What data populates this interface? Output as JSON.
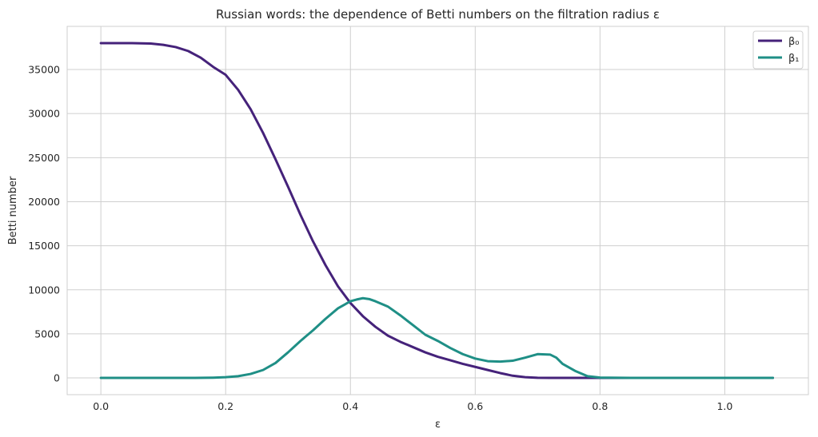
{
  "chart_data": {
    "type": "line",
    "title": "Russian words: the dependence of Betti numbers on the filtration radius ε",
    "xlabel": "ε",
    "ylabel": "Betti number",
    "xlim": [
      -0.054,
      1.134
    ],
    "ylim": [
      -1900,
      39900
    ],
    "xticks": [
      0.0,
      0.2,
      0.4,
      0.6,
      0.8,
      1.0
    ],
    "xtick_labels": [
      "0.0",
      "0.2",
      "0.4",
      "0.6",
      "0.8",
      "1.0"
    ],
    "yticks": [
      0,
      5000,
      10000,
      15000,
      20000,
      25000,
      30000,
      35000
    ],
    "ytick_labels": [
      "0",
      "5000",
      "10000",
      "15000",
      "20000",
      "25000",
      "30000",
      "35000"
    ],
    "grid": true,
    "legend_position": "top-right",
    "series": [
      {
        "name": "β₀",
        "color": "#45227a",
        "x": [
          0.0,
          0.05,
          0.08,
          0.1,
          0.12,
          0.14,
          0.16,
          0.18,
          0.2,
          0.22,
          0.24,
          0.26,
          0.28,
          0.3,
          0.32,
          0.34,
          0.36,
          0.38,
          0.4,
          0.42,
          0.44,
          0.46,
          0.48,
          0.5,
          0.52,
          0.54,
          0.56,
          0.58,
          0.6,
          0.62,
          0.64,
          0.66,
          0.68,
          0.7,
          0.72,
          0.74,
          0.76,
          0.8,
          0.9,
          1.0,
          1.077
        ],
        "y": [
          38000,
          38000,
          37950,
          37800,
          37550,
          37100,
          36350,
          35300,
          34400,
          32700,
          30500,
          27800,
          24800,
          21700,
          18500,
          15500,
          12800,
          10400,
          8500,
          7000,
          5800,
          4800,
          4100,
          3500,
          2900,
          2400,
          2000,
          1600,
          1250,
          900,
          550,
          250,
          80,
          20,
          5,
          0,
          0,
          0,
          0,
          0,
          0
        ]
      },
      {
        "name": "β₁",
        "color": "#1f8f86",
        "x": [
          0.0,
          0.1,
          0.15,
          0.18,
          0.2,
          0.22,
          0.24,
          0.26,
          0.28,
          0.3,
          0.32,
          0.34,
          0.36,
          0.38,
          0.39,
          0.4,
          0.41,
          0.42,
          0.43,
          0.44,
          0.46,
          0.48,
          0.5,
          0.52,
          0.54,
          0.56,
          0.58,
          0.6,
          0.62,
          0.64,
          0.66,
          0.68,
          0.7,
          0.72,
          0.73,
          0.74,
          0.76,
          0.78,
          0.8,
          0.85,
          0.9,
          1.0,
          1.077
        ],
        "y": [
          0,
          0,
          0,
          30,
          80,
          200,
          450,
          900,
          1700,
          2900,
          4200,
          5400,
          6700,
          7900,
          8300,
          8700,
          8900,
          9050,
          8950,
          8700,
          8100,
          7100,
          6000,
          4900,
          4200,
          3400,
          2700,
          2200,
          1900,
          1850,
          1950,
          2300,
          2700,
          2650,
          2300,
          1600,
          800,
          200,
          40,
          0,
          0,
          0,
          0
        ]
      }
    ]
  }
}
